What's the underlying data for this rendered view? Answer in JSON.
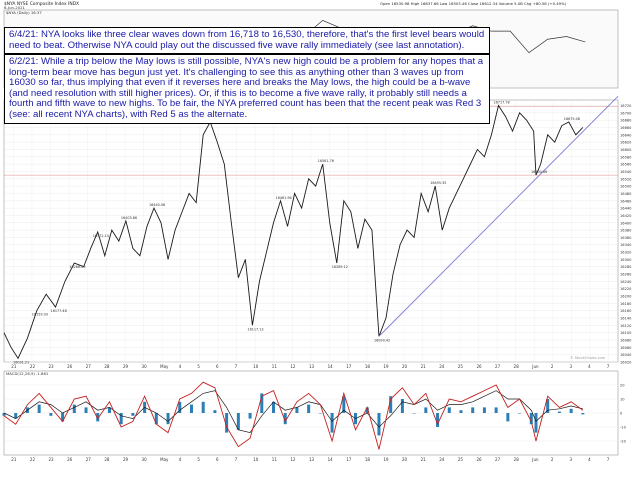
{
  "header": {
    "symbol": "$NYA",
    "name": "NYSE Composite Index",
    "exchange": "INDX",
    "date_short": "6-Jun-2021",
    "ohlc": "Open 16530.98  High 16637.66  Low 16503.46  Close 16612.34  Volume 5.0B  Chg +80.58 (+0.49%)",
    "price_inset_label": "$NYA (Daily) 16.37",
    "main_label": "$NYA 15 min  16612.34",
    "macd_label": "MACD(12,26,9) -1.861",
    "watermark": "© StockCharts.com"
  },
  "annotations": {
    "note1": "6/4/21:  NYA looks like three clear waves down from 16,718 to 16,530, therefore, that's the first level bears would need to beat.  Otherwise NYA could play out the discussed five wave rally immediately (see last annotation).",
    "note2": "6/2/21:  While a trip below the May lows is still possible, NYA's new high could be a problem for any hopes that a long-term bear move has begun just yet.  It's challenging to see this as anything other than 3 waves up from 16030 so far, thus implying that even if it reverses here and breaks the May lows, the high could be a b-wave (and need resolution with still higher prices).  Or, if this is to become a five wave rally, it probably still needs a fourth and fifth wave to new highs.  To be fair, the NYA preferred count has been that the recent peak was Red 3 (see: all recent NYA charts), with Red 5 as the alternate."
  },
  "colors": {
    "price": "#1a1a1a",
    "trendline": "#7b7bd6",
    "macd": "#c42020",
    "signal": "#1a1a1a",
    "histogram": "#2b7fb6",
    "annotation_text": "#1a1aa8",
    "grid": "#e6e6e6"
  },
  "chart_data": {
    "type": "line",
    "title": "NYSE Composite Index (15 minute)",
    "x_axis_labels": [
      "21",
      "22",
      "23",
      "26",
      "27",
      "28",
      "29",
      "30",
      "May",
      "4",
      "5",
      "6",
      "7",
      "10",
      "11",
      "12",
      "13",
      "14",
      "17",
      "18",
      "19",
      "20",
      "21",
      "24",
      "25",
      "26",
      "27",
      "28",
      "Jun",
      "2",
      "3",
      "4",
      "7"
    ],
    "y_ticks": [
      16020,
      16040,
      16060,
      16080,
      16100,
      16120,
      16140,
      16160,
      16180,
      16200,
      16220,
      16240,
      16260,
      16280,
      16300,
      16320,
      16340,
      16360,
      16380,
      16400,
      16420,
      16440,
      16460,
      16480,
      16500,
      16520,
      16540,
      16560,
      16580,
      16600,
      16620,
      16640,
      16660,
      16680,
      16700,
      16720
    ],
    "ylim": [
      16020,
      16735
    ],
    "series": [
      {
        "points": [
          [
            0,
            16100
          ],
          [
            3,
            16060
          ],
          [
            6,
            16030
          ],
          [
            10,
            16085
          ],
          [
            14,
            16160
          ],
          [
            18,
            16205
          ],
          [
            22,
            16170
          ],
          [
            26,
            16240
          ],
          [
            30,
            16290
          ],
          [
            34,
            16280
          ],
          [
            37,
            16330
          ],
          [
            40,
            16375
          ],
          [
            43,
            16310
          ],
          [
            46,
            16380
          ],
          [
            49,
            16350
          ],
          [
            52,
            16405
          ],
          [
            55,
            16330
          ],
          [
            58,
            16310
          ],
          [
            61,
            16390
          ],
          [
            64,
            16440
          ],
          [
            67,
            16400
          ],
          [
            70,
            16300
          ],
          [
            73,
            16380
          ],
          [
            76,
            16430
          ],
          [
            79,
            16480
          ],
          [
            82,
            16455
          ],
          [
            85,
            16640
          ],
          [
            88,
            16675
          ],
          [
            91,
            16620
          ],
          [
            94,
            16560
          ],
          [
            97,
            16400
          ],
          [
            100,
            16250
          ],
          [
            103,
            16300
          ],
          [
            106,
            16120
          ],
          [
            109,
            16240
          ],
          [
            112,
            16320
          ],
          [
            115,
            16400
          ],
          [
            118,
            16460
          ],
          [
            121,
            16390
          ],
          [
            124,
            16480
          ],
          [
            127,
            16440
          ],
          [
            130,
            16520
          ],
          [
            133,
            16500
          ],
          [
            136,
            16560
          ],
          [
            139,
            16400
          ],
          [
            142,
            16290
          ],
          [
            145,
            16460
          ],
          [
            148,
            16430
          ],
          [
            151,
            16330
          ],
          [
            154,
            16410
          ],
          [
            157,
            16380
          ],
          [
            160,
            16090
          ],
          [
            163,
            16140
          ],
          [
            166,
            16260
          ],
          [
            169,
            16340
          ],
          [
            172,
            16380
          ],
          [
            175,
            16360
          ],
          [
            178,
            16480
          ],
          [
            181,
            16430
          ],
          [
            184,
            16500
          ],
          [
            187,
            16380
          ],
          [
            190,
            16440
          ],
          [
            193,
            16480
          ],
          [
            196,
            16520
          ],
          [
            199,
            16560
          ],
          [
            202,
            16600
          ],
          [
            205,
            16580
          ],
          [
            208,
            16640
          ],
          [
            211,
            16720
          ],
          [
            214,
            16690
          ],
          [
            217,
            16650
          ],
          [
            220,
            16700
          ],
          [
            223,
            16680
          ],
          [
            226,
            16650
          ],
          [
            227,
            16530
          ],
          [
            229,
            16560
          ],
          [
            232,
            16640
          ],
          [
            235,
            16620
          ],
          [
            238,
            16665
          ],
          [
            241,
            16675
          ],
          [
            244,
            16640
          ],
          [
            247,
            16660
          ]
        ]
      }
    ],
    "point_labels": [
      {
        "x": 6,
        "y": 16030,
        "text": "16031.21"
      },
      {
        "x": 14,
        "y": 16160,
        "text": "16159.00"
      },
      {
        "x": 22,
        "y": 16170,
        "text": "16177.48"
      },
      {
        "x": 30,
        "y": 16290,
        "text": "16286.06"
      },
      {
        "x": 40,
        "y": 16375,
        "text": "16372.14"
      },
      {
        "x": 52,
        "y": 16405,
        "text": "16403.86"
      },
      {
        "x": 64,
        "y": 16440,
        "text": "16440.06"
      },
      {
        "x": 88,
        "y": 16675,
        "text": "16675.71"
      },
      {
        "x": 106,
        "y": 16120,
        "text": "16117.13"
      },
      {
        "x": 118,
        "y": 16460,
        "text": "16461.96"
      },
      {
        "x": 136,
        "y": 16560,
        "text": "16561.76"
      },
      {
        "x": 142,
        "y": 16290,
        "text": "16289.12"
      },
      {
        "x": 160,
        "y": 16090,
        "text": "16090.42"
      },
      {
        "x": 184,
        "y": 16500,
        "text": "16495.35"
      },
      {
        "x": 211,
        "y": 16720,
        "text": "16717.78"
      },
      {
        "x": 227,
        "y": 16530,
        "text": "16530.66"
      },
      {
        "x": 241,
        "y": 16675,
        "text": "16675.08"
      }
    ],
    "trendline": [
      [
        160,
        16090
      ],
      [
        262,
        16745
      ]
    ],
    "reference_levels": [
      16718,
      16530
    ],
    "inset_points": [
      [
        0,
        16480
      ],
      [
        8,
        16510
      ],
      [
        16,
        16470
      ],
      [
        24,
        16530
      ],
      [
        32,
        16520
      ],
      [
        40,
        16560
      ],
      [
        48,
        16530
      ],
      [
        56,
        16580
      ],
      [
        64,
        16560
      ],
      [
        72,
        16600
      ],
      [
        80,
        16570
      ],
      [
        88,
        16520
      ],
      [
        96,
        16590
      ],
      [
        104,
        16620
      ],
      [
        112,
        16600
      ],
      [
        120,
        16640
      ],
      [
        128,
        16620
      ],
      [
        136,
        16680
      ],
      [
        144,
        16650
      ],
      [
        152,
        16600
      ],
      [
        160,
        16560
      ],
      [
        168,
        16640
      ],
      [
        176,
        16610
      ],
      [
        184,
        16650
      ],
      [
        192,
        16630
      ],
      [
        200,
        16660
      ],
      [
        208,
        16640
      ],
      [
        216,
        16640
      ],
      [
        224,
        16560
      ],
      [
        232,
        16610
      ],
      [
        240,
        16620
      ],
      [
        248,
        16600
      ]
    ],
    "macd": {
      "label": "MACD(12,26,9)",
      "ylim": [
        -30,
        30
      ],
      "y_ticks": [
        -20,
        -10,
        0,
        10,
        20
      ],
      "macd_line": [
        [
          0,
          -2
        ],
        [
          5,
          -8
        ],
        [
          10,
          6
        ],
        [
          15,
          14
        ],
        [
          20,
          4
        ],
        [
          25,
          -6
        ],
        [
          30,
          10
        ],
        [
          35,
          12
        ],
        [
          40,
          -4
        ],
        [
          45,
          8
        ],
        [
          50,
          -10
        ],
        [
          55,
          -6
        ],
        [
          60,
          12
        ],
        [
          65,
          -8
        ],
        [
          70,
          -14
        ],
        [
          75,
          10
        ],
        [
          80,
          14
        ],
        [
          85,
          22
        ],
        [
          90,
          18
        ],
        [
          95,
          -10
        ],
        [
          100,
          -24
        ],
        [
          105,
          -18
        ],
        [
          110,
          12
        ],
        [
          115,
          16
        ],
        [
          120,
          -6
        ],
        [
          125,
          8
        ],
        [
          130,
          14
        ],
        [
          135,
          6
        ],
        [
          140,
          -20
        ],
        [
          145,
          14
        ],
        [
          150,
          -12
        ],
        [
          155,
          4
        ],
        [
          160,
          -26
        ],
        [
          165,
          10
        ],
        [
          170,
          18
        ],
        [
          175,
          6
        ],
        [
          180,
          14
        ],
        [
          185,
          -8
        ],
        [
          190,
          10
        ],
        [
          195,
          8
        ],
        [
          200,
          12
        ],
        [
          205,
          16
        ],
        [
          210,
          20
        ],
        [
          215,
          4
        ],
        [
          220,
          10
        ],
        [
          225,
          -6
        ],
        [
          227,
          -20
        ],
        [
          232,
          12
        ],
        [
          237,
          4
        ],
        [
          242,
          8
        ],
        [
          247,
          2
        ]
      ],
      "signal_line": [
        [
          0,
          0
        ],
        [
          5,
          -4
        ],
        [
          10,
          2
        ],
        [
          15,
          8
        ],
        [
          20,
          6
        ],
        [
          25,
          0
        ],
        [
          30,
          4
        ],
        [
          35,
          8
        ],
        [
          40,
          2
        ],
        [
          45,
          4
        ],
        [
          50,
          -2
        ],
        [
          55,
          -4
        ],
        [
          60,
          4
        ],
        [
          65,
          0
        ],
        [
          70,
          -6
        ],
        [
          75,
          2
        ],
        [
          80,
          8
        ],
        [
          85,
          14
        ],
        [
          90,
          16
        ],
        [
          95,
          4
        ],
        [
          100,
          -12
        ],
        [
          105,
          -14
        ],
        [
          110,
          -2
        ],
        [
          115,
          8
        ],
        [
          120,
          2
        ],
        [
          125,
          4
        ],
        [
          130,
          8
        ],
        [
          135,
          6
        ],
        [
          140,
          -6
        ],
        [
          145,
          2
        ],
        [
          150,
          -4
        ],
        [
          155,
          0
        ],
        [
          160,
          -10
        ],
        [
          165,
          -2
        ],
        [
          170,
          8
        ],
        [
          175,
          6
        ],
        [
          180,
          10
        ],
        [
          185,
          2
        ],
        [
          190,
          6
        ],
        [
          195,
          6
        ],
        [
          200,
          8
        ],
        [
          205,
          12
        ],
        [
          210,
          16
        ],
        [
          215,
          10
        ],
        [
          220,
          10
        ],
        [
          225,
          2
        ],
        [
          227,
          -6
        ],
        [
          232,
          2
        ],
        [
          237,
          3
        ],
        [
          242,
          5
        ],
        [
          247,
          3
        ]
      ]
    }
  }
}
